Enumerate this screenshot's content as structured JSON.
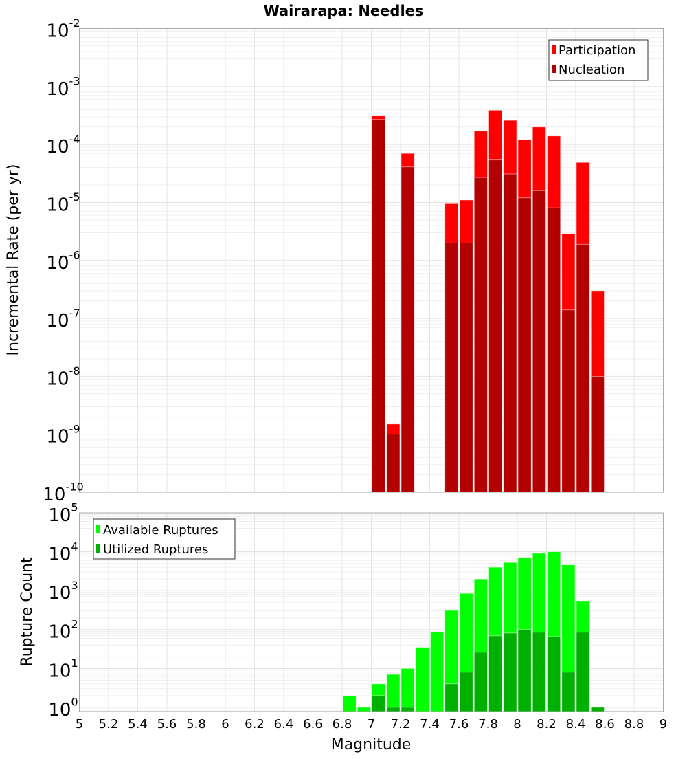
{
  "chart_data": [
    {
      "type": "bar",
      "title": "Wairarapa: Needles",
      "xlabel": "Magnitude",
      "ylabel": "Incremental Rate (per yr)",
      "yscale": "log",
      "ylim": [
        1e-10,
        0.01
      ],
      "xlim": [
        5,
        9
      ],
      "grid": true,
      "legend_position": "top-right",
      "bin_width": 0.1,
      "x": [
        7.05,
        7.15,
        7.25,
        7.55,
        7.65,
        7.75,
        7.85,
        7.95,
        8.05,
        8.15,
        8.25,
        8.35,
        8.45,
        8.55
      ],
      "series": [
        {
          "name": "Participation",
          "color": "#ff0000",
          "values": [
            0.00031,
            1.5e-09,
            7e-05,
            9.5e-06,
            1.1e-05,
            0.00017,
            0.00039,
            0.00026,
            0.00012,
            0.0002,
            0.00014,
            2.9e-06,
            4.9e-05,
            3e-07
          ]
        },
        {
          "name": "Nucleation",
          "color": "#b30000",
          "values": [
            0.00027,
            1e-09,
            4.1e-05,
            2e-06,
            2e-06,
            2.7e-05,
            5.4e-05,
            3.1e-05,
            1.2e-05,
            1.6e-05,
            8.1e-06,
            1.4e-07,
            1.9e-06,
            1e-08
          ]
        }
      ],
      "ytick_exponents": [
        -10,
        -9,
        -8,
        -7,
        -6,
        -5,
        -4,
        -3,
        -2
      ]
    },
    {
      "type": "bar",
      "xlabel": "Magnitude",
      "ylabel": "Rupture Count",
      "yscale": "log",
      "ylim": [
        0.78,
        100000.0
      ],
      "xlim": [
        5,
        9
      ],
      "grid": true,
      "legend_position": "top-left",
      "bin_width": 0.1,
      "x": [
        6.85,
        6.95,
        7.05,
        7.15,
        7.25,
        7.35,
        7.45,
        7.55,
        7.65,
        7.75,
        7.85,
        7.95,
        8.05,
        8.15,
        8.25,
        8.35,
        8.45,
        8.55
      ],
      "series": [
        {
          "name": "Available Ruptures",
          "color": "#00ff00",
          "values": [
            2,
            1,
            4,
            7,
            10,
            35,
            88,
            310,
            850,
            2000,
            4000,
            5300,
            7200,
            9100,
            10000,
            4600,
            550,
            1
          ]
        },
        {
          "name": "Utilized Ruptures",
          "color": "#00b000",
          "values": [
            0,
            0,
            2,
            1,
            1,
            0,
            0,
            4,
            8,
            26,
            69,
            81,
            100,
            85,
            66,
            8,
            85,
            1
          ]
        }
      ],
      "ytick_exponents": [
        0,
        1,
        2,
        3,
        4,
        5
      ]
    }
  ],
  "xticks": [
    "5",
    "5.2",
    "5.4",
    "5.6",
    "5.8",
    "6",
    "6.2",
    "6.4",
    "6.6",
    "6.8",
    "7",
    "7.2",
    "7.4",
    "7.6",
    "7.8",
    "8",
    "8.2",
    "8.4",
    "8.6",
    "8.8",
    "9"
  ],
  "ytick_base": "10"
}
